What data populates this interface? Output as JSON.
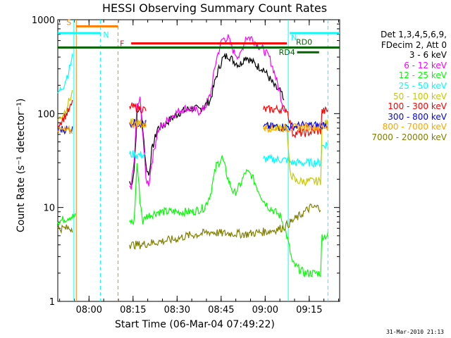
{
  "chart_data": {
    "type": "line",
    "title": "HESSI Observing Summary Count Rates",
    "xlabel": "Start Time (06-Mar-04 07:49:22)",
    "ylabel": "Count Rate (s⁻¹ detector⁻¹)",
    "x_unit": "minutes after 07:49:22",
    "xlim": [
      0,
      96
    ],
    "ylim": [
      1,
      1000
    ],
    "yscale": "log",
    "x_ticks": [
      "08:00",
      "08:15",
      "08:30",
      "08:45",
      "09:00",
      "09:15"
    ],
    "y_ticks": [
      "1",
      "10",
      "100",
      "1000"
    ],
    "legend_header": [
      "Det 1,3,4,5,6,9,",
      "FDecim 2, Att 0"
    ],
    "legend_placement": "right",
    "footer": "31-Mar-2010 21:13",
    "series": [
      {
        "name": "3 - 6 keV",
        "color": "#000000",
        "points": [
          [
            24.4,
            19
          ],
          [
            25,
            17
          ],
          [
            26,
            25
          ],
          [
            27,
            95
          ],
          [
            28,
            120
          ],
          [
            29,
            70
          ],
          [
            30,
            28
          ],
          [
            31,
            22
          ],
          [
            32,
            40
          ],
          [
            34,
            70
          ],
          [
            36,
            75
          ],
          [
            38,
            85
          ],
          [
            40,
            95
          ],
          [
            42,
            105
          ],
          [
            44,
            110
          ],
          [
            46,
            115
          ],
          [
            48,
            110
          ],
          [
            50,
            120
          ],
          [
            52,
            140
          ],
          [
            54,
            250
          ],
          [
            56,
            380
          ],
          [
            58,
            420
          ],
          [
            60,
            360
          ],
          [
            62,
            330
          ],
          [
            64,
            410
          ],
          [
            66,
            360
          ],
          [
            68,
            320
          ],
          [
            70,
            300
          ],
          [
            72,
            240
          ],
          [
            74,
            190
          ],
          [
            76,
            170
          ],
          [
            77,
            130
          ]
        ]
      },
      {
        "name": "6 - 12 keV",
        "color": "#ff00ff",
        "points": [
          [
            24.4,
            17
          ],
          [
            25,
            17
          ],
          [
            26,
            30
          ],
          [
            27,
            120
          ],
          [
            28,
            140
          ],
          [
            29,
            60
          ],
          [
            30,
            20
          ],
          [
            31,
            18
          ],
          [
            32,
            30
          ],
          [
            34,
            65
          ],
          [
            36,
            75
          ],
          [
            38,
            90
          ],
          [
            40,
            100
          ],
          [
            42,
            110
          ],
          [
            44,
            115
          ],
          [
            46,
            110
          ],
          [
            48,
            105
          ],
          [
            50,
            115
          ],
          [
            52,
            160
          ],
          [
            54,
            380
          ],
          [
            56,
            620
          ],
          [
            58,
            640
          ],
          [
            60,
            450
          ],
          [
            62,
            400
          ],
          [
            64,
            650
          ],
          [
            66,
            640
          ],
          [
            68,
            540
          ],
          [
            70,
            480
          ],
          [
            72,
            400
          ],
          [
            74,
            260
          ],
          [
            76,
            150
          ],
          [
            77,
            110
          ]
        ]
      },
      {
        "name": "12 - 25 keV",
        "color": "#00ff00",
        "points": [
          [
            0,
            7
          ],
          [
            4,
            8
          ],
          [
            6,
            8
          ],
          [
            24.4,
            7
          ],
          [
            26,
            7
          ],
          [
            27,
            30
          ],
          [
            28,
            12
          ],
          [
            29,
            7
          ],
          [
            30,
            8
          ],
          [
            34,
            9
          ],
          [
            38,
            9
          ],
          [
            42,
            9
          ],
          [
            46,
            9
          ],
          [
            50,
            10
          ],
          [
            52,
            14
          ],
          [
            54,
            28
          ],
          [
            56,
            34
          ],
          [
            58,
            20
          ],
          [
            60,
            14
          ],
          [
            62,
            17
          ],
          [
            64,
            24
          ],
          [
            66,
            22
          ],
          [
            68,
            16
          ],
          [
            70,
            12
          ],
          [
            72,
            10
          ],
          [
            74,
            9
          ],
          [
            76,
            8
          ],
          [
            78,
            5
          ],
          [
            80,
            2.5
          ],
          [
            84,
            2
          ],
          [
            88,
            2
          ],
          [
            89.5,
            2
          ],
          [
            90,
            5
          ],
          [
            92,
            5
          ]
        ]
      },
      {
        "name": "25 - 50 keV",
        "color": "#00ffff",
        "points": [
          [
            0,
            165
          ],
          [
            2,
            200
          ],
          [
            4,
            300
          ],
          [
            5,
            420
          ],
          [
            24.4,
            37
          ],
          [
            30,
            36
          ],
          [
            40,
            35
          ],
          [
            50,
            35
          ],
          [
            60,
            34
          ],
          [
            70,
            33
          ],
          [
            78,
            32
          ],
          [
            80,
            30
          ],
          [
            84,
            30
          ],
          [
            88,
            30
          ],
          [
            89.5,
            30
          ],
          [
            90,
            45
          ],
          [
            92,
            48
          ]
        ]
      },
      {
        "name": "50 - 100 keV",
        "color": "#c8c800",
        "points": [
          [
            0,
            85
          ],
          [
            2,
            100
          ],
          [
            4,
            140
          ],
          [
            5,
            170
          ],
          [
            24.4,
            80
          ],
          [
            30,
            78
          ],
          [
            40,
            76
          ],
          [
            50,
            75
          ],
          [
            60,
            75
          ],
          [
            70,
            73
          ],
          [
            78,
            70
          ],
          [
            79,
            24
          ],
          [
            81,
            19
          ],
          [
            84,
            19
          ],
          [
            88,
            19
          ],
          [
            89.5,
            19
          ],
          [
            90,
            75
          ],
          [
            92,
            80
          ]
        ]
      },
      {
        "name": "100 - 300 keV",
        "color": "#ff0000",
        "points": [
          [
            0,
            75
          ],
          [
            2,
            90
          ],
          [
            4,
            110
          ],
          [
            5,
            130
          ],
          [
            24.4,
            120
          ],
          [
            30,
            110
          ],
          [
            40,
            108
          ],
          [
            50,
            105
          ],
          [
            60,
            110
          ],
          [
            70,
            110
          ],
          [
            78,
            112
          ],
          [
            80,
            62
          ],
          [
            84,
            62
          ],
          [
            88,
            65
          ],
          [
            89.5,
            65
          ],
          [
            90,
            105
          ],
          [
            92,
            108
          ]
        ]
      },
      {
        "name": "300 - 800 keV",
        "color": "#0000ff",
        "points": [
          [
            0,
            68
          ],
          [
            5,
            68
          ],
          [
            24.4,
            80
          ],
          [
            30,
            78
          ],
          [
            40,
            76
          ],
          [
            50,
            75
          ],
          [
            60,
            75
          ],
          [
            70,
            73
          ],
          [
            78,
            72
          ],
          [
            84,
            75
          ],
          [
            89.5,
            75
          ],
          [
            92,
            77
          ]
        ]
      },
      {
        "name": "800 - 7000 keV",
        "color": "#ffa500",
        "points": [
          [
            0,
            66
          ],
          [
            5,
            66
          ],
          [
            24.4,
            78
          ],
          [
            30,
            76
          ],
          [
            40,
            74
          ],
          [
            50,
            73
          ],
          [
            60,
            72
          ],
          [
            70,
            71
          ],
          [
            78,
            70
          ],
          [
            84,
            72
          ],
          [
            89.5,
            72
          ],
          [
            92,
            74
          ]
        ]
      },
      {
        "name": "7000 - 20000 keV",
        "color": "#808000",
        "points": [
          [
            0,
            6
          ],
          [
            5,
            6
          ],
          [
            24.4,
            4
          ],
          [
            28,
            4
          ],
          [
            32,
            4.2
          ],
          [
            36,
            4.4
          ],
          [
            40,
            4.6
          ],
          [
            44,
            5
          ],
          [
            48,
            5.2
          ],
          [
            52,
            5.5
          ],
          [
            56,
            5.3
          ],
          [
            60,
            5.3
          ],
          [
            64,
            5.2
          ],
          [
            68,
            5.4
          ],
          [
            72,
            5.6
          ],
          [
            76,
            6
          ],
          [
            78,
            6.5
          ],
          [
            82,
            8
          ],
          [
            86,
            10
          ],
          [
            89.5,
            10
          ]
        ]
      }
    ],
    "flag_bars": [
      {
        "label": "S",
        "color": "#ff8000",
        "x_start": 6.3,
        "x_end": 20.5,
        "y": 850
      },
      {
        "label": "N",
        "color": "#00ffff",
        "x_start": 0,
        "x_end": 14.5,
        "y": 720
      },
      {
        "label": "N",
        "color": "#00ffff",
        "x_start": 79,
        "x_end": 96,
        "y": 720
      },
      {
        "label": "F",
        "color": "#ff0000",
        "x_start": 25,
        "x_end": 78,
        "y": 560
      },
      {
        "label": "RD0",
        "color": "#006400",
        "x_start": 0,
        "x_end": 96,
        "y": 505
      },
      {
        "label": "RD4",
        "color": "#006400",
        "x_start": 81.5,
        "x_end": 89,
        "y": 450
      }
    ],
    "vertical_markers": [
      {
        "color": "#ff8000",
        "style": "solid",
        "x": 6.3
      },
      {
        "color": "#ff8000",
        "style": "dashed",
        "x": 20.5
      },
      {
        "color": "#00ffff",
        "style": "solid",
        "x": 5.5
      },
      {
        "color": "#00ffff",
        "style": "dashed",
        "x": 14.5
      },
      {
        "color": "#00ffff",
        "style": "solid",
        "x": 78.5
      },
      {
        "color": "#00ffff",
        "style": "dashed",
        "x": 92
      }
    ]
  }
}
